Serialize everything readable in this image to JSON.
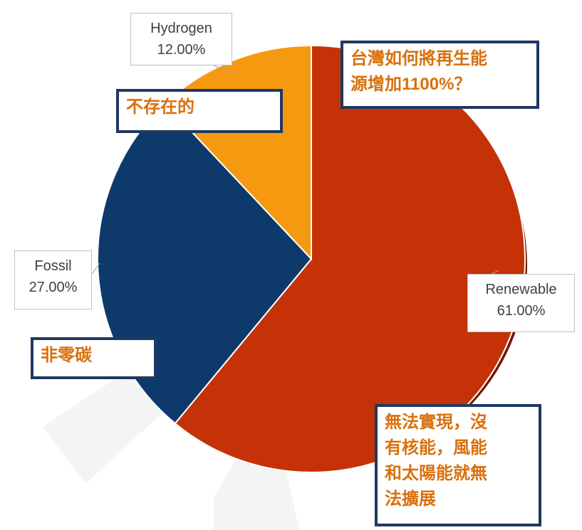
{
  "chart_data": {
    "type": "pie",
    "categories": [
      "Renewable",
      "Fossil",
      "Hydrogen"
    ],
    "values": [
      61,
      27,
      12
    ],
    "value_labels": [
      "61.00%",
      "27.00%",
      "12.00%"
    ],
    "colors": [
      "#c53208",
      "#0d3a6b",
      "#f59a10"
    ],
    "annotations": [
      {
        "lines": [
          "台灣如何將再生能",
          "源增加1100%？"
        ]
      },
      {
        "lines": [
          "不存在的"
        ]
      },
      {
        "lines": [
          "非零碳"
        ]
      },
      {
        "lines": [
          "無法實現，沒",
          "有核能，風能",
          "和太陽能就無",
          "法擴展"
        ]
      }
    ]
  }
}
